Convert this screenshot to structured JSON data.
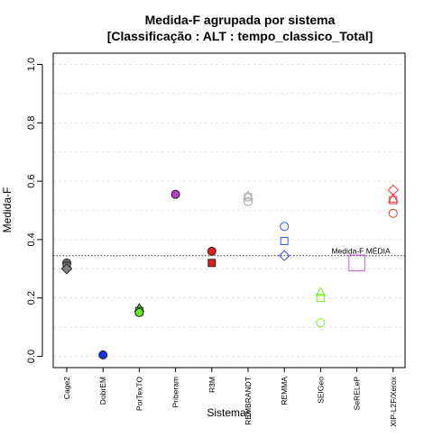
{
  "chart_data": {
    "type": "scatter",
    "title": "Medida-F agrupada por sistema",
    "subtitle": "[Classificação : ALT : tempo_classico_Total]",
    "xlabel": "Sistemas",
    "ylabel": "Medida-F",
    "ylim": [
      0.0,
      1.0
    ],
    "yticks": [
      0.0,
      0.2,
      0.4,
      0.6,
      0.8,
      1.0
    ],
    "ytick_labels": [
      "0.0",
      "0.2",
      "0.4",
      "0.6",
      "0.8",
      "1.0"
    ],
    "grid": true,
    "categories": [
      "Cage2",
      "DobrEM",
      "PorTexTO",
      "Priberam",
      "R3M",
      "REMBRANDT",
      "REMMA",
      "SEIGeo",
      "SeRELeP",
      "XIP-L2F/Xerox"
    ],
    "points": [
      {
        "category": "Cage2",
        "y": 0.32,
        "shape": "circle",
        "filled": true,
        "color": "#808080"
      },
      {
        "category": "Cage2",
        "y": 0.31,
        "shape": "triangle",
        "filled": true,
        "color": "#808080"
      },
      {
        "category": "Cage2",
        "y": 0.31,
        "shape": "square",
        "filled": true,
        "color": "#808080"
      },
      {
        "category": "Cage2",
        "y": 0.3,
        "shape": "diamond",
        "filled": true,
        "color": "#808080"
      },
      {
        "category": "DobrEM",
        "y": 0.005,
        "shape": "circle",
        "filled": true,
        "color": "#1a33e0"
      },
      {
        "category": "PorTexTO",
        "y": 0.165,
        "shape": "triangle",
        "filled": true,
        "color": "#66e619"
      },
      {
        "category": "PorTexTO",
        "y": 0.155,
        "shape": "square",
        "filled": true,
        "color": "#66e619"
      },
      {
        "category": "PorTexTO",
        "y": 0.15,
        "shape": "circle",
        "filled": true,
        "color": "#66e619"
      },
      {
        "category": "Priberam",
        "y": 0.555,
        "shape": "circle",
        "filled": true,
        "color": "#c038d0"
      },
      {
        "category": "R3M",
        "y": 0.36,
        "shape": "circle",
        "filled": true,
        "color": "#dd1f1f"
      },
      {
        "category": "R3M",
        "y": 0.32,
        "shape": "square",
        "filled": true,
        "color": "#dd1f1f"
      },
      {
        "category": "REMBRANDT",
        "y": 0.55,
        "shape": "triangle",
        "filled": false,
        "color": "#a6a6a6"
      },
      {
        "category": "REMBRANDT",
        "y": 0.545,
        "shape": "square",
        "filled": false,
        "color": "#a6a6a6"
      },
      {
        "category": "REMBRANDT",
        "y": 0.53,
        "shape": "circle",
        "filled": false,
        "color": "#a6a6a6"
      },
      {
        "category": "REMMA",
        "y": 0.445,
        "shape": "circle",
        "filled": false,
        "color": "#3355ee"
      },
      {
        "category": "REMMA",
        "y": 0.395,
        "shape": "square",
        "filled": false,
        "color": "#3355ee"
      },
      {
        "category": "REMMA",
        "y": 0.345,
        "shape": "diamond",
        "filled": false,
        "color": "#3355ee"
      },
      {
        "category": "SEIGeo",
        "y": 0.22,
        "shape": "triangle",
        "filled": false,
        "color": "#77ee22"
      },
      {
        "category": "SEIGeo",
        "y": 0.2,
        "shape": "square",
        "filled": false,
        "color": "#77ee22"
      },
      {
        "category": "SEIGeo",
        "y": 0.115,
        "shape": "circle",
        "filled": false,
        "color": "#77ee22"
      },
      {
        "category": "SeRELeP",
        "y": 0.32,
        "shape": "square",
        "filled": false,
        "color": "#cc55dd"
      },
      {
        "category": "XIP-L2F/Xerox",
        "y": 0.57,
        "shape": "diamond",
        "filled": false,
        "color": "#ee3333"
      },
      {
        "category": "XIP-L2F/Xerox",
        "y": 0.54,
        "shape": "triangle",
        "filled": false,
        "color": "#ee3333"
      },
      {
        "category": "XIP-L2F/Xerox",
        "y": 0.535,
        "shape": "square",
        "filled": false,
        "color": "#ee3333"
      },
      {
        "category": "XIP-L2F/Xerox",
        "y": 0.49,
        "shape": "circle",
        "filled": false,
        "color": "#ee3333"
      }
    ],
    "mean_line": {
      "y": 0.345,
      "label": "Medida-F MÉDIA"
    }
  }
}
